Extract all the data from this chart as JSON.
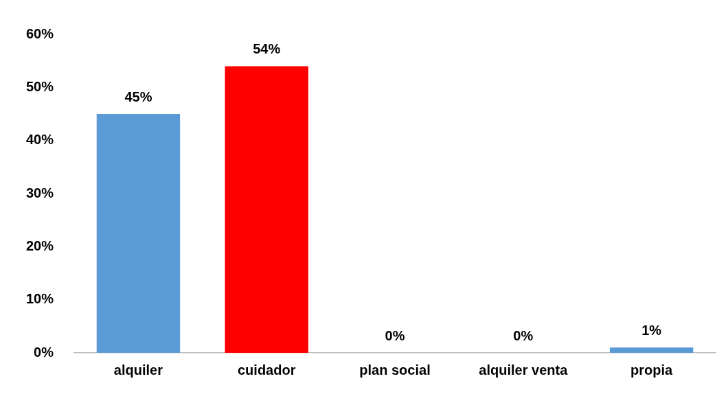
{
  "chart_data": {
    "type": "bar",
    "categories": [
      "alquiler",
      "cuidador",
      "plan social",
      "alquiler venta",
      "propia"
    ],
    "values": [
      45,
      54,
      0,
      0,
      1
    ],
    "colors": [
      "#5b9bd5",
      "#ff0000",
      "#5b9bd5",
      "#5b9bd5",
      "#5b9bd5"
    ],
    "value_labels": [
      "45%",
      "54%",
      "0%",
      "0%",
      "1%"
    ],
    "ylim": [
      0,
      60
    ],
    "yticks": [
      {
        "value": 0,
        "label": "0%"
      },
      {
        "value": 10,
        "label": "10%"
      },
      {
        "value": 20,
        "label": "20%"
      },
      {
        "value": 30,
        "label": "30%"
      },
      {
        "value": 40,
        "label": "40%"
      },
      {
        "value": 50,
        "label": "50%"
      },
      {
        "value": 60,
        "label": "60%"
      }
    ],
    "grid": false,
    "legend": false
  }
}
